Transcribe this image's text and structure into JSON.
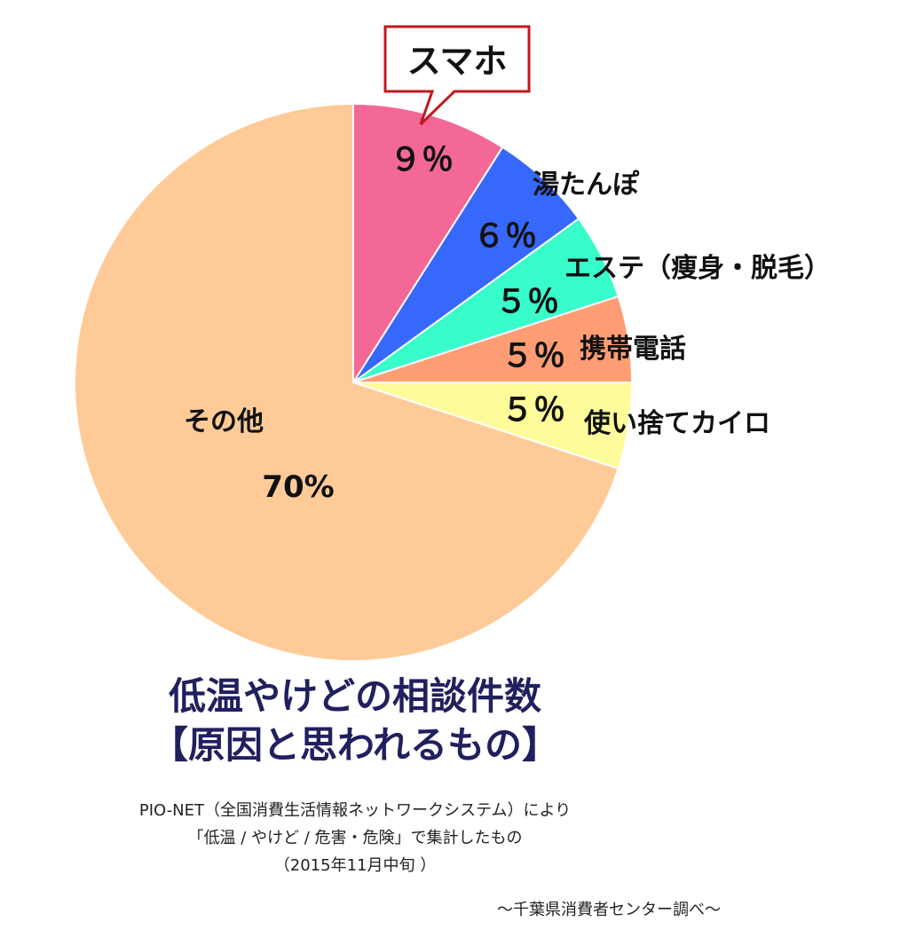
{
  "chart_data": {
    "type": "pie",
    "start": "top",
    "direction": "clockwise",
    "slices": [
      {
        "label": "スマホ",
        "value": 9,
        "value_label": "９％",
        "color": "#f36897",
        "callout": true
      },
      {
        "label": "湯たんぽ",
        "value": 6,
        "value_label": "６％",
        "color": "#3668fb"
      },
      {
        "label": "エステ（痩身・脱毛）",
        "value": 5,
        "value_label": "５％",
        "color": "#38fdcb"
      },
      {
        "label": "携帯電話",
        "value": 5,
        "value_label": "５％",
        "color": "#fe9d73"
      },
      {
        "label": "使い捨てカイロ",
        "value": 5,
        "value_label": "５％",
        "color": "#fefb9a"
      },
      {
        "label": "その他",
        "value": 70,
        "value_label": "70%",
        "color": "#fecb98"
      }
    ],
    "callout_border_color": "#c0191f"
  },
  "title": {
    "main": "低温やけどの相談件数",
    "sub": "【原因と思われるもの】"
  },
  "notes": {
    "line1": "PIO-NET（全国消費生活情報ネットワークシステム）により",
    "line2": "「低温 / やけど / 危害・危険」で集計したもの",
    "line3": "（2015年11月中旬 ）"
  },
  "credit": "～千葉県消費者センター調べ～",
  "colors": {
    "title": "#20205f"
  }
}
